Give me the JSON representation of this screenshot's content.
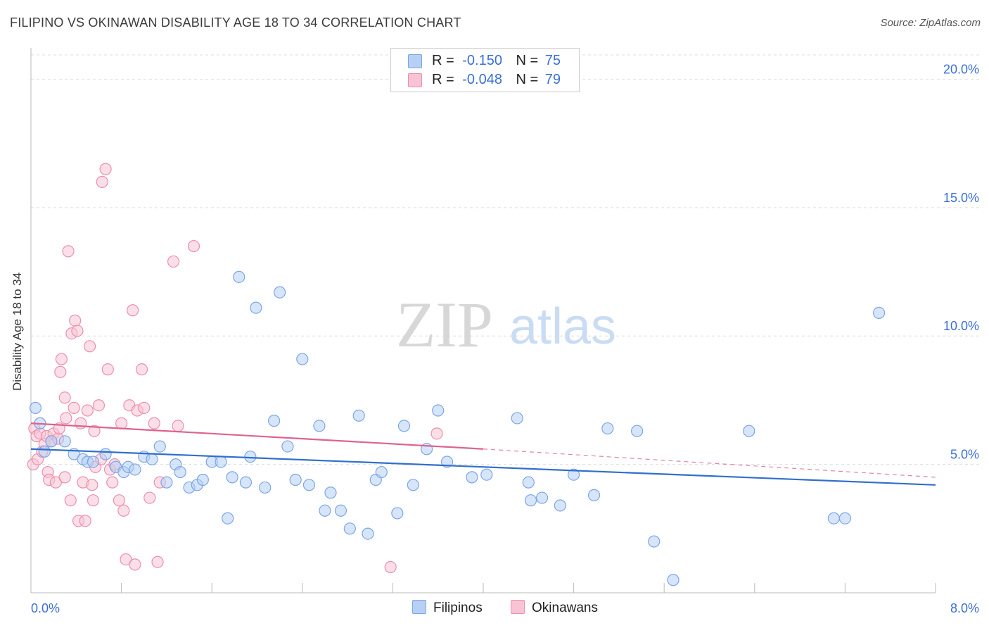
{
  "header": {
    "title": "FILIPINO VS OKINAWAN DISABILITY AGE 18 TO 34 CORRELATION CHART",
    "source": "Source: ZipAtlas.com"
  },
  "legend_top": {
    "rows": [
      {
        "r_label": "R =",
        "r_value": "-0.150",
        "n_label": "N =",
        "n_value": "75"
      },
      {
        "r_label": "R =",
        "r_value": "-0.048",
        "n_label": "N =",
        "n_value": "79"
      }
    ]
  },
  "legend_bottom": {
    "items": [
      "Filipinos",
      "Okinawans"
    ]
  },
  "watermark": {
    "zip": "ZIP",
    "atlas": "atlas"
  },
  "colors": {
    "filipinos_fill": "#b7d0f4",
    "filipinos_stroke": "#7ba6e6",
    "filipinos_line": "#2f6fce",
    "okinawans_fill": "#f8c4d4",
    "okinawans_stroke": "#ec8fae",
    "okinawans_line": "#e0628f",
    "tick_label": "#3a6fd8",
    "grid": "#dddddd"
  },
  "chart_data": {
    "type": "scatter",
    "title": "FILIPINO VS OKINAWAN DISABILITY AGE 18 TO 34 CORRELATION CHART",
    "ylabel": "Disability Age 18 to 34",
    "xlabel": "",
    "xlim": [
      0,
      8.0
    ],
    "ylim": [
      0,
      21.0
    ],
    "x_tick_labels": [
      "0.0%",
      "8.0%"
    ],
    "y_ticks": [
      5.0,
      10.0,
      15.0,
      20.0
    ],
    "y_tick_labels": [
      "5.0%",
      "10.0%",
      "15.0%",
      "20.0%"
    ],
    "grid": true,
    "legend_position": "top-center",
    "series": [
      {
        "name": "Filipinos",
        "R": -0.15,
        "N": 75,
        "trend": {
          "x0": 0.0,
          "y0": 5.6,
          "x1": 8.0,
          "y1": 4.2
        },
        "points": [
          [
            0.04,
            7.2
          ],
          [
            0.08,
            6.6
          ],
          [
            0.12,
            5.5
          ],
          [
            0.18,
            5.9
          ],
          [
            0.3,
            5.9
          ],
          [
            0.38,
            5.4
          ],
          [
            0.46,
            5.2
          ],
          [
            0.5,
            5.1
          ],
          [
            0.55,
            5.1
          ],
          [
            0.66,
            5.4
          ],
          [
            0.75,
            4.9
          ],
          [
            0.82,
            4.7
          ],
          [
            0.86,
            4.9
          ],
          [
            0.92,
            4.8
          ],
          [
            1.0,
            5.3
          ],
          [
            1.07,
            5.2
          ],
          [
            1.14,
            5.7
          ],
          [
            1.2,
            4.3
          ],
          [
            1.28,
            5.0
          ],
          [
            1.32,
            4.7
          ],
          [
            1.4,
            4.1
          ],
          [
            1.47,
            4.2
          ],
          [
            1.52,
            4.4
          ],
          [
            1.6,
            5.1
          ],
          [
            1.68,
            5.1
          ],
          [
            1.74,
            2.9
          ],
          [
            1.78,
            4.5
          ],
          [
            1.84,
            12.3
          ],
          [
            1.9,
            4.3
          ],
          [
            1.94,
            5.3
          ],
          [
            1.99,
            11.1
          ],
          [
            2.07,
            4.1
          ],
          [
            2.15,
            6.7
          ],
          [
            2.2,
            11.7
          ],
          [
            2.27,
            5.7
          ],
          [
            2.34,
            4.4
          ],
          [
            2.4,
            9.1
          ],
          [
            2.46,
            4.2
          ],
          [
            2.55,
            6.5
          ],
          [
            2.6,
            3.2
          ],
          [
            2.65,
            3.9
          ],
          [
            2.74,
            3.2
          ],
          [
            2.82,
            2.5
          ],
          [
            2.9,
            6.9
          ],
          [
            2.98,
            2.3
          ],
          [
            3.05,
            4.4
          ],
          [
            3.1,
            4.7
          ],
          [
            3.24,
            3.1
          ],
          [
            3.3,
            6.5
          ],
          [
            3.38,
            4.2
          ],
          [
            3.5,
            5.6
          ],
          [
            3.6,
            7.1
          ],
          [
            3.68,
            5.1
          ],
          [
            3.9,
            4.5
          ],
          [
            4.03,
            4.6
          ],
          [
            4.3,
            6.8
          ],
          [
            4.4,
            4.3
          ],
          [
            4.42,
            3.6
          ],
          [
            4.52,
            3.7
          ],
          [
            4.68,
            3.4
          ],
          [
            4.8,
            4.6
          ],
          [
            4.98,
            3.8
          ],
          [
            5.1,
            6.4
          ],
          [
            5.36,
            6.3
          ],
          [
            5.51,
            2.0
          ],
          [
            5.68,
            0.5
          ],
          [
            6.35,
            6.3
          ],
          [
            7.1,
            2.9
          ],
          [
            7.2,
            2.9
          ],
          [
            7.5,
            10.9
          ]
        ]
      },
      {
        "name": "Okinawans",
        "R": -0.048,
        "N": 79,
        "trend": {
          "x0": 0.0,
          "y0": 6.6,
          "x1": 4.0,
          "y1": 5.6
        },
        "trend_dashed": {
          "x0": 4.0,
          "y0": 5.6,
          "x1": 8.0,
          "y1": 4.5
        },
        "points": [
          [
            0.02,
            5.0
          ],
          [
            0.03,
            6.4
          ],
          [
            0.05,
            6.1
          ],
          [
            0.06,
            5.2
          ],
          [
            0.08,
            6.2
          ],
          [
            0.1,
            5.5
          ],
          [
            0.12,
            5.8
          ],
          [
            0.14,
            6.1
          ],
          [
            0.15,
            4.7
          ],
          [
            0.16,
            4.4
          ],
          [
            0.18,
            5.9
          ],
          [
            0.2,
            6.2
          ],
          [
            0.22,
            4.3
          ],
          [
            0.24,
            6.0
          ],
          [
            0.25,
            6.4
          ],
          [
            0.26,
            8.6
          ],
          [
            0.27,
            9.1
          ],
          [
            0.3,
            4.5
          ],
          [
            0.3,
            7.6
          ],
          [
            0.31,
            6.8
          ],
          [
            0.33,
            13.3
          ],
          [
            0.35,
            3.6
          ],
          [
            0.36,
            10.1
          ],
          [
            0.38,
            7.2
          ],
          [
            0.39,
            10.6
          ],
          [
            0.41,
            10.2
          ],
          [
            0.42,
            2.8
          ],
          [
            0.44,
            6.6
          ],
          [
            0.46,
            4.3
          ],
          [
            0.48,
            2.8
          ],
          [
            0.5,
            7.1
          ],
          [
            0.52,
            9.6
          ],
          [
            0.54,
            4.2
          ],
          [
            0.55,
            3.6
          ],
          [
            0.56,
            6.3
          ],
          [
            0.57,
            4.9
          ],
          [
            0.6,
            7.3
          ],
          [
            0.62,
            5.2
          ],
          [
            0.63,
            16.0
          ],
          [
            0.66,
            16.5
          ],
          [
            0.68,
            8.7
          ],
          [
            0.7,
            4.8
          ],
          [
            0.72,
            4.3
          ],
          [
            0.74,
            5.0
          ],
          [
            0.78,
            3.6
          ],
          [
            0.8,
            6.6
          ],
          [
            0.82,
            3.2
          ],
          [
            0.84,
            1.3
          ],
          [
            0.87,
            7.3
          ],
          [
            0.9,
            11.0
          ],
          [
            0.92,
            1.1
          ],
          [
            0.94,
            7.1
          ],
          [
            0.98,
            8.7
          ],
          [
            1.0,
            7.2
          ],
          [
            1.05,
            3.7
          ],
          [
            1.09,
            6.6
          ],
          [
            1.12,
            1.2
          ],
          [
            1.14,
            4.3
          ],
          [
            1.26,
            12.9
          ],
          [
            1.3,
            6.5
          ],
          [
            1.44,
            13.5
          ],
          [
            3.18,
            1.0
          ],
          [
            3.59,
            6.2
          ]
        ]
      }
    ]
  }
}
